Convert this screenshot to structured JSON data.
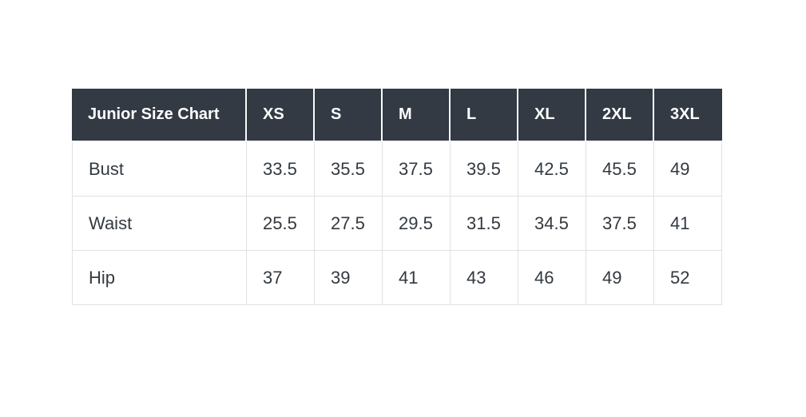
{
  "page": {
    "background": "#ffffff"
  },
  "table": {
    "title_cell": "Junior Size Chart",
    "size_columns": [
      "XS",
      "S",
      "M",
      "L",
      "XL",
      "2XL",
      "3XL"
    ],
    "rows": [
      {
        "label": "Bust",
        "values": [
          "33.5",
          "35.5",
          "37.5",
          "39.5",
          "42.5",
          "45.5",
          "49"
        ]
      },
      {
        "label": "Waist",
        "values": [
          "25.5",
          "27.5",
          "29.5",
          "31.5",
          "34.5",
          "37.5",
          "41"
        ]
      },
      {
        "label": "Hip",
        "values": [
          "37",
          "39",
          "41",
          "43",
          "46",
          "49",
          "52"
        ]
      }
    ],
    "colors": {
      "header_bg": "#333a44",
      "header_text": "#ffffff",
      "body_bg": "#ffffff",
      "body_text": "#333940",
      "border": "#dee1e6",
      "header_separator": "#fafbfb"
    }
  },
  "chart_data": {
    "type": "table",
    "title": "Junior Size Chart",
    "columns": [
      "XS",
      "S",
      "M",
      "L",
      "XL",
      "2XL",
      "3XL"
    ],
    "rows": [
      {
        "label": "Bust",
        "values": [
          33.5,
          35.5,
          37.5,
          39.5,
          42.5,
          45.5,
          49
        ]
      },
      {
        "label": "Waist",
        "values": [
          25.5,
          27.5,
          29.5,
          31.5,
          34.5,
          37.5,
          41
        ]
      },
      {
        "label": "Hip",
        "values": [
          37,
          39,
          41,
          43,
          46,
          49,
          52
        ]
      }
    ],
    "layout": {
      "header_style": "dark",
      "grid": true,
      "value_alignment": "left"
    }
  }
}
